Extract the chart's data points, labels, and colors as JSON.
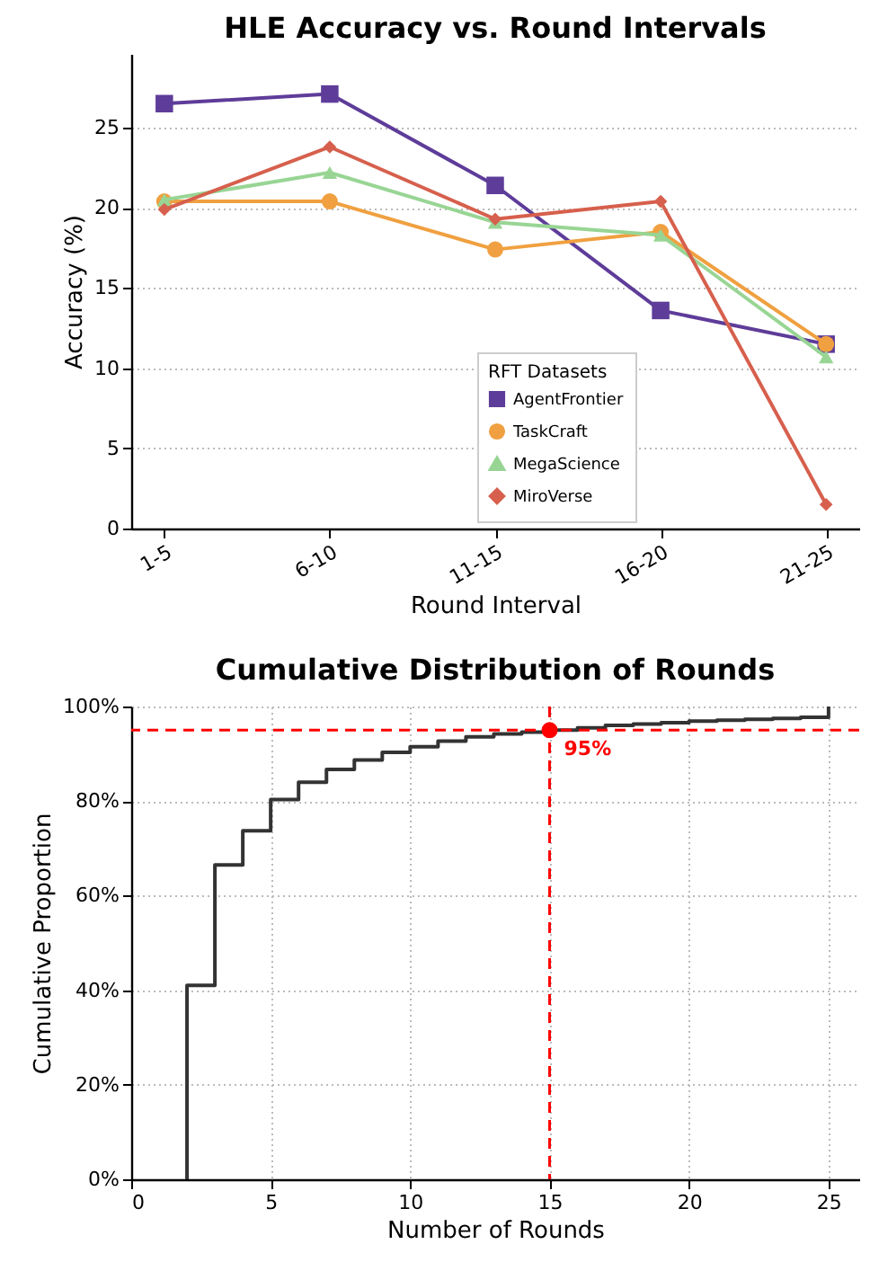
{
  "chart_data": [
    {
      "type": "line",
      "title": "HLE Accuracy vs. Round Intervals",
      "xlabel": "Round Interval",
      "ylabel": "Accuracy (%)",
      "legend_title": "RFT Datasets",
      "categories": [
        "1-5",
        "6-10",
        "11-15",
        "16-20",
        "21-25"
      ],
      "series": [
        {
          "name": "AgentFrontier",
          "color": "#5e3c99",
          "marker": "square",
          "values": [
            26.5,
            27.1,
            21.4,
            13.6,
            11.5
          ]
        },
        {
          "name": "TaskCraft",
          "color": "#f0a040",
          "marker": "circle",
          "values": [
            20.4,
            20.4,
            17.4,
            18.5,
            11.5
          ]
        },
        {
          "name": "MegaScience",
          "color": "#98d594",
          "marker": "triangle",
          "values": [
            20.5,
            22.2,
            19.1,
            18.3,
            10.7
          ]
        },
        {
          "name": "MiroVerse",
          "color": "#d6604d",
          "marker": "diamond",
          "values": [
            19.9,
            23.8,
            19.3,
            20.4,
            1.5
          ]
        }
      ],
      "ylim": [
        0,
        29.6
      ],
      "yticks": [
        0,
        5,
        10,
        15,
        20,
        25
      ],
      "grid": "y",
      "legend": "bottom",
      "line_style": "solid"
    },
    {
      "type": "step",
      "title": "Cumulative Distribution of Rounds",
      "xlabel": "Number of Rounds",
      "ylabel": "Cumulative Proportion",
      "series": [
        {
          "color": "#333333",
          "marker": "none",
          "x": [
            2,
            2,
            3,
            4,
            5,
            6,
            7,
            8,
            9,
            10,
            11,
            12,
            13,
            14,
            15,
            16,
            17,
            18,
            19,
            20,
            21,
            22,
            23,
            24,
            25
          ],
          "values": [
            0,
            41,
            66.5,
            73.7,
            80.3,
            84,
            86.7,
            88.7,
            90.3,
            91.5,
            92.7,
            93.6,
            94.2,
            94.6,
            95,
            95.5,
            96,
            96.3,
            96.6,
            96.9,
            97.1,
            97.3,
            97.5,
            97.7,
            100
          ]
        },
        {
          "type": "scatter",
          "color": "#ff0000",
          "marker": "circle",
          "x": [
            15
          ],
          "values": [
            95
          ]
        }
      ],
      "ref_lines": [
        {
          "axis": "x",
          "value": 15,
          "color": "#ff0000",
          "line_style": "dashed"
        },
        {
          "axis": "y",
          "value": 95,
          "color": "#ff0000",
          "line_style": "dashed"
        }
      ],
      "annotations": [
        {
          "text": "95%",
          "x": 15,
          "y": 95
        }
      ],
      "xlim": [
        0,
        26.1
      ],
      "xticks": [
        0,
        5,
        10,
        15,
        20,
        25
      ],
      "ylim": [
        0,
        100
      ],
      "yticks": [
        {
          "value": 0,
          "label": "0%"
        },
        {
          "value": 20,
          "label": "20%"
        },
        {
          "value": 40,
          "label": "40%"
        },
        {
          "value": 60,
          "label": "60%"
        },
        {
          "value": 80,
          "label": "80%"
        },
        {
          "value": 100,
          "label": "100%"
        }
      ],
      "grid": true
    }
  ]
}
